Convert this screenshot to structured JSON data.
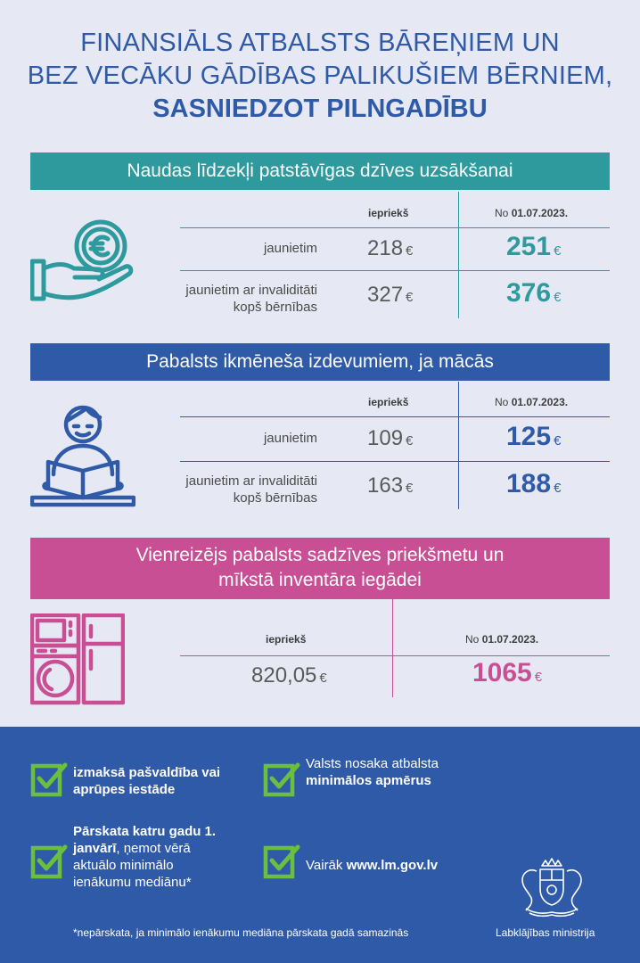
{
  "title": {
    "line1": "FINANSIĀLS ATBALSTS BĀREŅIEM UN",
    "line2": "BEZ VECĀKU GĀDĪBAS PALIKUŠIEM BĒRNIEM,",
    "line3": "SASNIEDZOT PILNGADĪBU"
  },
  "colors": {
    "teal": "#2e9a9e",
    "blue": "#2f5aa8",
    "pink": "#c94f95",
    "green": "#6abf3f"
  },
  "sections": {
    "s1": {
      "title": "Naudas līdzekļi patstāvīgas dzīves uzsākšanai",
      "icon": "hand-euro-coin-icon",
      "col_prev": "iepriekš",
      "col_new_prefix": "No ",
      "col_new_date": "01.07.2023.",
      "rows": [
        {
          "label": "jaunietim",
          "prev": "218",
          "new": "251"
        },
        {
          "label": "jaunietim ar invaliditāti kopš bērnības",
          "prev": "327",
          "new": "376"
        }
      ]
    },
    "s2": {
      "title": "Pabalsts ikmēneša izdevumiem, ja mācās",
      "icon": "student-reading-icon",
      "col_prev": "iepriekš",
      "col_new_prefix": "No ",
      "col_new_date": "01.07.2023.",
      "rows": [
        {
          "label": "jaunietim",
          "prev": "109",
          "new": "125"
        },
        {
          "label": "jaunietim ar invaliditāti kopš bērnības",
          "prev": "163",
          "new": "188"
        }
      ]
    },
    "s3": {
      "title_line1": "Vienreizējs pabalsts sadzīves priekšmetu un",
      "title_line2": "mīkstā inventāra iegādei",
      "icon": "household-appliances-icon",
      "col_prev": "iepriekš",
      "col_new_prefix": "No ",
      "col_new_date": "01.07.2023.",
      "prev": "820,05",
      "new": "1065"
    }
  },
  "currency": "€",
  "footer": {
    "item1_bold": "izmaksā pašvaldība vai aprūpes iestāde",
    "item2_text": "Valsts nosaka atbalsta ",
    "item2_bold": "minimālos apmērus",
    "item3_bold": "Pārskata katru gadu 1. janvārī",
    "item3_text": ", ņemot vērā aktuālo minimālo ienākumu mediānu*",
    "item4_text": "Vairāk ",
    "item4_bold": "www.lm.gov.lv",
    "footnote": "*nepārskata, ja minimālo ienākumu mediāna pārskata gadā samazinās",
    "ministry": "Labklājības ministrija"
  }
}
